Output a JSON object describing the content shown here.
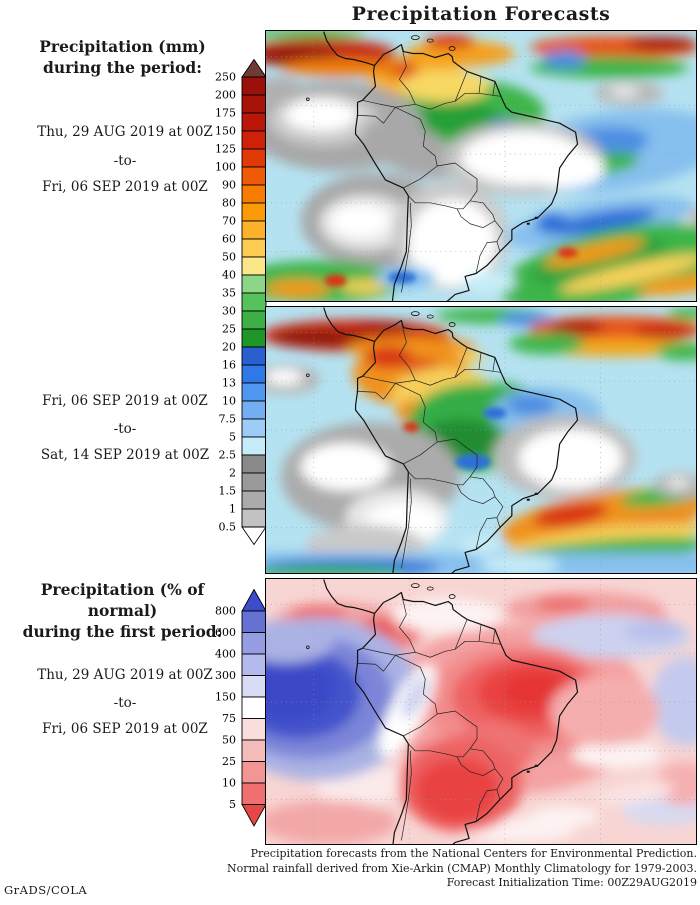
{
  "title": "Precipitation Forecasts",
  "panel_mm_first": {
    "heading_line1": "Precipitation (mm)",
    "heading_line2": "during the period:",
    "date_from": "Thu, 29 AUG 2019 at 00Z",
    "date_sep": "-to-",
    "date_to": "Fri, 06 SEP 2019 at 00Z"
  },
  "panel_mm_second": {
    "date_from": "Fri, 06 SEP 2019 at 00Z",
    "date_sep": "-to-",
    "date_to": "Sat, 14 SEP 2019 at 00Z"
  },
  "panel_pct": {
    "heading_line1": "Precipitation (% of normal)",
    "heading_line2": "during the first period:",
    "date_from": "Thu, 29 AUG 2019 at 00Z",
    "date_sep": "-to-",
    "date_to": "Fri, 06 SEP 2019 at 00Z"
  },
  "legends": {
    "mm": {
      "units": "mm",
      "labels": [
        "250",
        "200",
        "175",
        "150",
        "125",
        "100",
        "90",
        "80",
        "70",
        "60",
        "50",
        "40",
        "35",
        "30",
        "25",
        "20",
        "16",
        "13",
        "10",
        "7.5",
        "5",
        "2.5",
        "2",
        "1.5",
        "1",
        "0.5"
      ],
      "segment_colors": [
        "#9a100b",
        "#a81309",
        "#ba1708",
        "#cf2008",
        "#e23a06",
        "#ef5a04",
        "#f97c02",
        "#fb9a07",
        "#fcb32b",
        "#fccd52",
        "#fbe788",
        "#8ed687",
        "#55c25c",
        "#3cb044",
        "#1e9628",
        "#2a5fd0",
        "#2e78e8",
        "#4f97ef",
        "#73aef3",
        "#9ccdf7",
        "#c6ecfa",
        "#8a8a8a",
        "#9a9a9a",
        "#ababab",
        "#c2c2c2"
      ],
      "top_arrow_color": "#6e3b35",
      "bottom_arrow_color": "#ffffff"
    },
    "pct": {
      "units": "% of normal",
      "labels": [
        "800",
        "600",
        "400",
        "300",
        "150",
        "75",
        "50",
        "25",
        "10",
        "5"
      ],
      "segment_colors": [
        "#6672d2",
        "#959ee3",
        "#b4baeb",
        "#d9dcf5",
        "#ffffff",
        "#fadddd",
        "#f6bcbc",
        "#f19595",
        "#ee7070"
      ],
      "top_arrow_color": "#3d4ccb",
      "bottom_arrow_color": "#e84747"
    }
  },
  "footer": {
    "line1": "Precipitation forecasts from the National Centers for Environmental Prediction.",
    "line2": "Normal rainfall derived from Xie-Arkin (CMAP) Monthly Climatology for 1979-2003.",
    "line3": "Forecast Initialization Time: 00Z29AUG2019"
  },
  "credit": "GrADS/COLA",
  "chart_data": [
    {
      "type": "heatmap",
      "title": "Precipitation (mm), Thu 29 AUG 2019 00Z to Fri 06 SEP 2019 00Z",
      "region": "South America",
      "scale_values_mm": [
        0.5,
        1,
        1.5,
        2,
        2.5,
        5,
        7.5,
        10,
        13,
        16,
        20,
        25,
        30,
        35,
        40,
        50,
        60,
        70,
        80,
        90,
        100,
        125,
        150,
        175,
        200,
        250
      ],
      "legend_position": "left",
      "notes": "ITCZ band >100mm across top; gray/white dry areas over SE Pacific, Peru, central Brazil and Argentina; green-blue 10-40mm over NW Amazon and NE Brazilian coast; green/orange storm-track bands over the far South Atlantic"
    },
    {
      "type": "heatmap",
      "title": "Precipitation (mm), Fri 06 SEP 2019 00Z to Sat 14 SEP 2019 00Z",
      "region": "South America",
      "scale_values_mm": [
        0.5,
        1,
        1.5,
        2,
        2.5,
        5,
        7.5,
        10,
        13,
        16,
        20,
        25,
        30,
        35,
        40,
        50,
        60,
        70,
        80,
        90,
        100,
        125,
        150,
        175,
        200,
        250
      ],
      "legend_position": "left",
      "notes": "Strong red ITCZ band along top; orange 60-125mm over Colombia/Venezuela; green over western Amazon; dry white/gray over Peru, SE Pacific and east-central Brazil; orange/red band over Uruguay-southern Brazil"
    },
    {
      "type": "heatmap",
      "title": "Precipitation (% of normal), Thu 29 AUG 2019 00Z to Fri 06 SEP 2019 00Z",
      "region": "South America",
      "scale_values_pct": [
        5,
        10,
        25,
        50,
        75,
        150,
        300,
        400,
        600,
        800
      ],
      "legend_position": "left",
      "notes": "Below-normal (red, <50%) over most of Brazil and Argentina; far above normal (deep blue, >600%) over the eastern tropical Pacific; near-normal white/lavender bands along the Andes and the Atlantic"
    }
  ]
}
